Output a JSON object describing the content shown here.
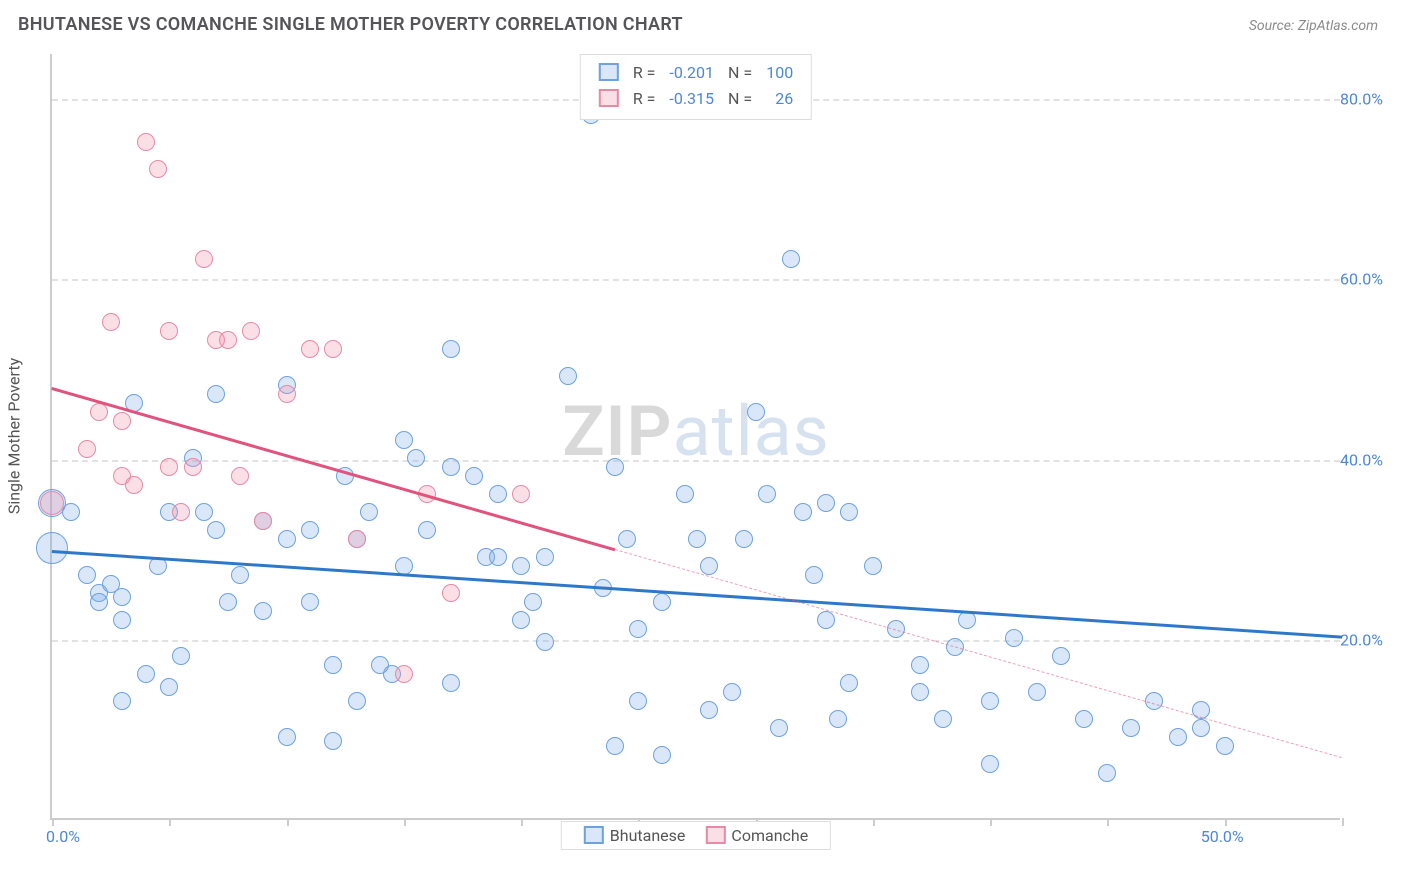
{
  "header": {
    "title": "BHUTANESE VS COMANCHE SINGLE MOTHER POVERTY CORRELATION CHART",
    "source": "Source: ZipAtlas.com"
  },
  "watermark": {
    "left": "ZIP",
    "right": "atlas"
  },
  "chart": {
    "type": "scatter",
    "ylabel": "Single Mother Poverty",
    "background_color": "#ffffff",
    "grid_color": "#e2e2e2",
    "axis_color": "#cccccc",
    "label_color": "#4d87d8",
    "xlim": [
      0,
      55
    ],
    "ylim": [
      0,
      85
    ],
    "x_tick_step": 5,
    "x_labels": [
      {
        "x": 0,
        "text": "0.0%"
      },
      {
        "x": 50,
        "text": "50.0%"
      }
    ],
    "y_gridlines": [
      20,
      40,
      60,
      80
    ],
    "y_labels": [
      {
        "y": 20,
        "text": "20.0%"
      },
      {
        "y": 40,
        "text": "40.0%"
      },
      {
        "y": 60,
        "text": "60.0%"
      },
      {
        "y": 80,
        "text": "80.0%"
      }
    ],
    "series": [
      {
        "name": "Bhutanese",
        "fill": "rgba(117,169,232,0.28)",
        "stroke": "#6ea2de",
        "marker_r": 9,
        "line": {
          "color": "#2e78c9",
          "width": 3,
          "x1": 0,
          "y1": 30,
          "x2": 55,
          "y2": 20.5,
          "solid_until_x": 55
        },
        "points": [
          [
            0,
            35,
            14
          ],
          [
            0,
            30,
            16
          ],
          [
            0.8,
            34
          ],
          [
            1.5,
            27
          ],
          [
            2,
            25
          ],
          [
            2,
            24
          ],
          [
            2.5,
            26
          ],
          [
            3,
            24.5
          ],
          [
            3,
            13
          ],
          [
            3,
            22
          ],
          [
            3.5,
            46
          ],
          [
            4,
            16
          ],
          [
            4.5,
            28
          ],
          [
            5,
            34
          ],
          [
            5,
            14.5
          ],
          [
            5.5,
            18
          ],
          [
            6,
            40
          ],
          [
            6.5,
            34
          ],
          [
            7,
            32
          ],
          [
            7,
            47
          ],
          [
            7.5,
            24
          ],
          [
            8,
            27
          ],
          [
            9,
            23
          ],
          [
            9,
            33
          ],
          [
            10,
            48
          ],
          [
            10,
            31
          ],
          [
            10,
            9
          ],
          [
            11,
            32
          ],
          [
            11,
            24
          ],
          [
            12,
            8.5
          ],
          [
            12,
            17
          ],
          [
            12.5,
            38
          ],
          [
            13,
            13
          ],
          [
            13,
            31
          ],
          [
            13.5,
            34
          ],
          [
            14,
            17
          ],
          [
            14.5,
            16
          ],
          [
            15,
            42
          ],
          [
            15,
            28
          ],
          [
            15.5,
            40
          ],
          [
            16,
            32
          ],
          [
            17,
            52
          ],
          [
            17,
            39
          ],
          [
            17,
            15
          ],
          [
            18,
            38
          ],
          [
            18.5,
            29
          ],
          [
            19,
            36
          ],
          [
            19,
            29
          ],
          [
            20,
            22
          ],
          [
            20,
            28
          ],
          [
            20.5,
            24
          ],
          [
            21,
            19.5
          ],
          [
            21,
            29
          ],
          [
            22,
            49
          ],
          [
            23,
            78
          ],
          [
            23.5,
            25.5
          ],
          [
            24,
            39
          ],
          [
            24,
            8
          ],
          [
            24.5,
            31
          ],
          [
            25,
            21
          ],
          [
            25,
            13
          ],
          [
            26,
            7
          ],
          [
            26,
            24
          ],
          [
            27,
            36
          ],
          [
            27.5,
            31
          ],
          [
            28,
            12
          ],
          [
            28,
            28
          ],
          [
            29,
            14
          ],
          [
            29.5,
            31
          ],
          [
            30,
            45
          ],
          [
            30.5,
            36
          ],
          [
            31,
            10
          ],
          [
            31.5,
            62
          ],
          [
            32,
            34
          ],
          [
            32.5,
            27
          ],
          [
            33,
            35
          ],
          [
            33,
            22
          ],
          [
            33.5,
            11
          ],
          [
            34,
            15
          ],
          [
            34,
            34
          ],
          [
            35,
            28
          ],
          [
            36,
            21
          ],
          [
            37,
            14
          ],
          [
            37,
            17
          ],
          [
            38,
            11
          ],
          [
            38.5,
            19
          ],
          [
            39,
            22
          ],
          [
            40,
            6
          ],
          [
            40,
            13
          ],
          [
            41,
            20
          ],
          [
            42,
            14
          ],
          [
            43,
            18
          ],
          [
            44,
            11
          ],
          [
            45,
            5
          ],
          [
            46,
            10
          ],
          [
            47,
            13
          ],
          [
            48,
            9
          ],
          [
            49,
            12
          ],
          [
            50,
            8
          ],
          [
            49,
            10
          ]
        ]
      },
      {
        "name": "Comanche",
        "fill": "rgba(242,150,175,0.30)",
        "stroke": "#e68aa5",
        "marker_r": 9,
        "line": {
          "color": "#e0537d",
          "width": 3,
          "x1": 0,
          "y1": 48,
          "x2": 55,
          "y2": 7,
          "solid_until_x": 24
        },
        "points": [
          [
            0,
            35,
            12
          ],
          [
            1.5,
            41
          ],
          [
            2,
            45
          ],
          [
            2.5,
            55
          ],
          [
            3,
            44
          ],
          [
            3,
            38
          ],
          [
            3.5,
            37
          ],
          [
            4,
            75
          ],
          [
            4.5,
            72
          ],
          [
            5,
            39
          ],
          [
            5,
            54
          ],
          [
            5.5,
            34
          ],
          [
            6,
            39
          ],
          [
            6.5,
            62
          ],
          [
            7,
            53
          ],
          [
            7.5,
            53
          ],
          [
            8,
            38
          ],
          [
            8.5,
            54
          ],
          [
            9,
            33
          ],
          [
            10,
            47
          ],
          [
            11,
            52
          ],
          [
            12,
            52
          ],
          [
            13,
            31
          ],
          [
            15,
            16
          ],
          [
            16,
            36
          ],
          [
            17,
            25
          ],
          [
            20,
            36
          ]
        ]
      }
    ],
    "legend_top": {
      "rows": [
        {
          "series": 0,
          "R_label": "R =",
          "R": "-0.201",
          "N_label": "N =",
          "N": "100"
        },
        {
          "series": 1,
          "R_label": "R =",
          "R": "-0.315",
          "N_label": "N =",
          "N": "26"
        }
      ]
    },
    "legend_bottom": {
      "items": [
        {
          "series": 0,
          "label": "Bhutanese"
        },
        {
          "series": 1,
          "label": "Comanche"
        }
      ]
    }
  }
}
